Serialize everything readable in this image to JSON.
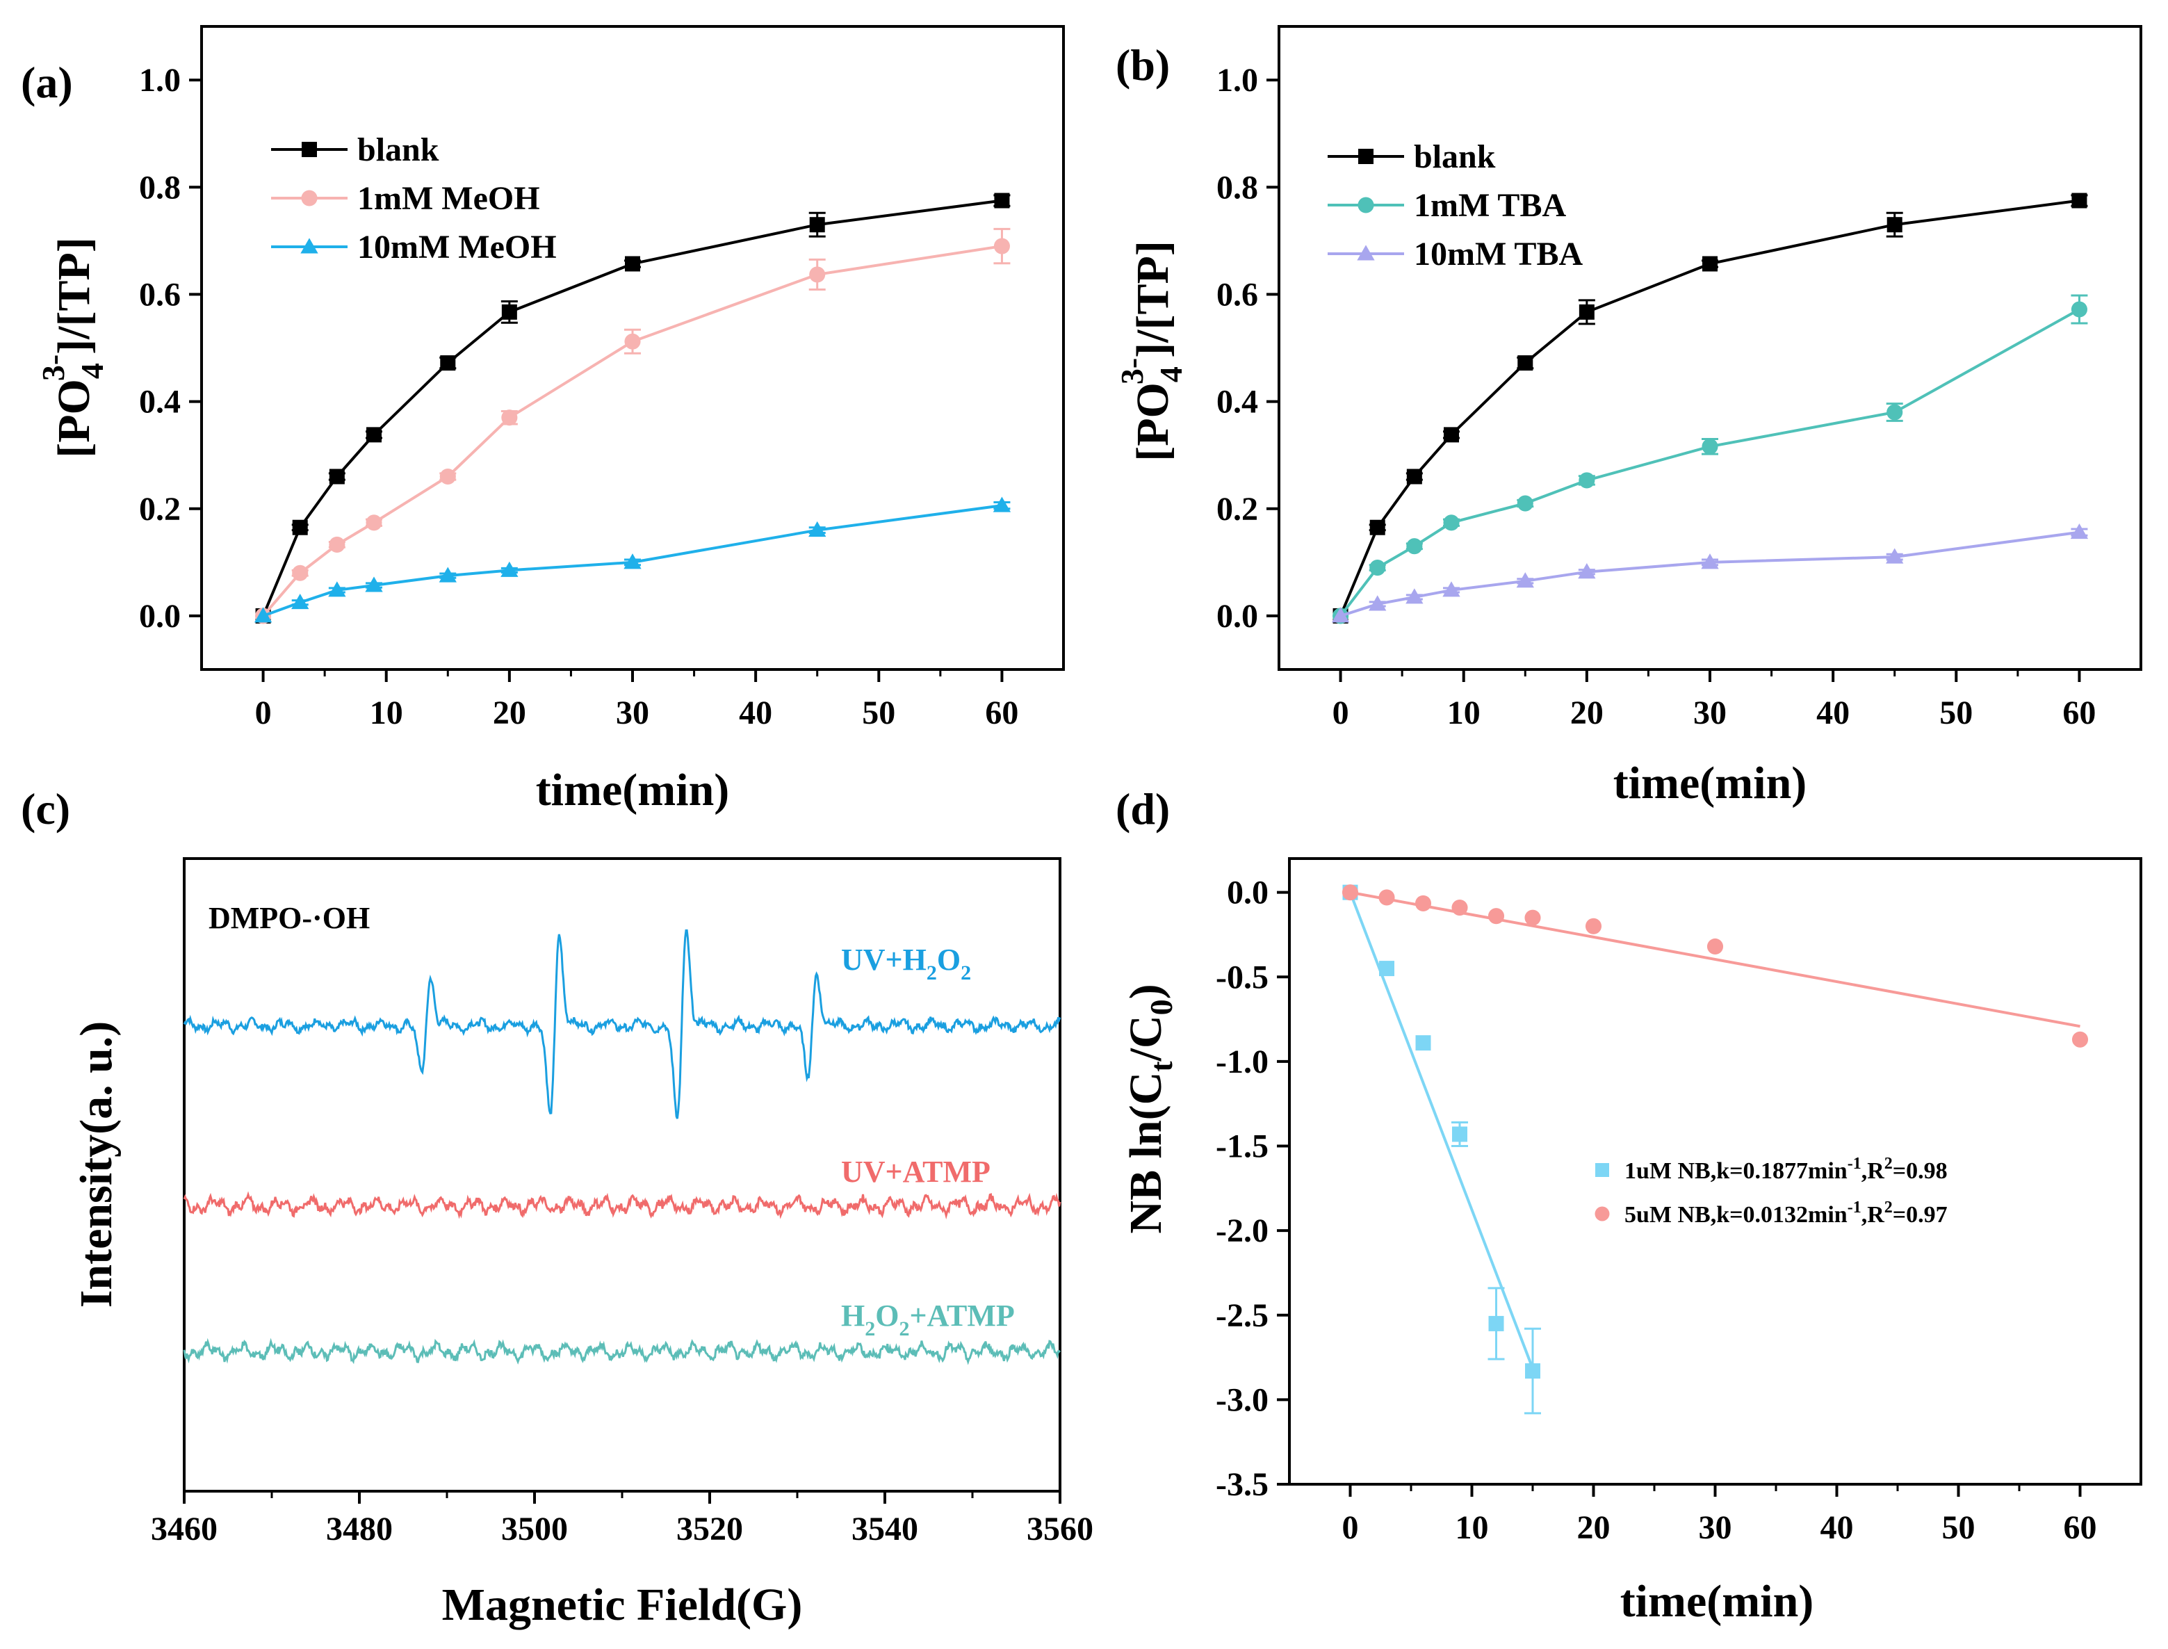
{
  "chart_data": [
    {
      "id": "a",
      "panel_label": "(a)",
      "type": "line",
      "xlabel": "time(min)",
      "ylabel_parts": {
        "pre": "[PO",
        "sub": "4",
        "sup": "3-",
        "post": "]/[TP]"
      },
      "xlim": [
        -5,
        65
      ],
      "ylim": [
        -0.1,
        1.1
      ],
      "xticks": [
        0,
        10,
        20,
        30,
        40,
        50,
        60
      ],
      "xtick_labels": [
        "0",
        "10",
        "20",
        "30",
        "40",
        "50",
        "60"
      ],
      "yticks": [
        0.0,
        0.2,
        0.4,
        0.6,
        0.8,
        1.0
      ],
      "ytick_labels": [
        "0.0",
        "0.2",
        "0.4",
        "0.6",
        "0.8",
        "1.0"
      ],
      "legend_position": "top-left",
      "series": [
        {
          "name": "blank",
          "color": "#000000",
          "marker": "square",
          "x": [
            0,
            3,
            6,
            9,
            15,
            20,
            30,
            45,
            60
          ],
          "y": [
            0.0,
            0.165,
            0.26,
            0.338,
            0.472,
            0.567,
            0.657,
            0.73,
            0.775
          ],
          "err": [
            0,
            0.005,
            0.006,
            0.006,
            0.01,
            0.02,
            0.006,
            0.022,
            0.01
          ]
        },
        {
          "name": "1mM MeOH",
          "color": "#f7b3b1",
          "marker": "circle",
          "x": [
            0,
            3,
            6,
            9,
            15,
            20,
            30,
            45,
            60
          ],
          "y": [
            0.0,
            0.08,
            0.133,
            0.174,
            0.26,
            0.37,
            0.512,
            0.637,
            0.69
          ],
          "err": [
            0,
            0.005,
            0.005,
            0.006,
            0.006,
            0.012,
            0.022,
            0.028,
            0.032
          ]
        },
        {
          "name": "10mM MeOH",
          "color": "#1fb0ea",
          "marker": "triangle",
          "x": [
            0,
            3,
            6,
            9,
            15,
            20,
            30,
            45,
            60
          ],
          "y": [
            0.0,
            0.025,
            0.048,
            0.057,
            0.075,
            0.085,
            0.1,
            0.16,
            0.206
          ],
          "err": [
            0,
            0.004,
            0.004,
            0.004,
            0.004,
            0.004,
            0.005,
            0.005,
            0.006
          ]
        }
      ]
    },
    {
      "id": "b",
      "panel_label": "(b)",
      "type": "line",
      "xlabel": "time(min)",
      "ylabel_parts": {
        "pre": "[PO",
        "sub": "4",
        "sup": "3-",
        "post": "]/[TP]"
      },
      "xlim": [
        -5,
        65
      ],
      "ylim": [
        -0.1,
        1.1
      ],
      "xticks": [
        0,
        10,
        20,
        30,
        40,
        50,
        60
      ],
      "xtick_labels": [
        "0",
        "10",
        "20",
        "30",
        "40",
        "50",
        "60"
      ],
      "yticks": [
        0.0,
        0.2,
        0.4,
        0.6,
        0.8,
        1.0
      ],
      "ytick_labels": [
        "0.0",
        "0.2",
        "0.4",
        "0.6",
        "0.8",
        "1.0"
      ],
      "legend_position": "top-left",
      "series": [
        {
          "name": "blank",
          "color": "#000000",
          "marker": "square",
          "x": [
            0,
            3,
            6,
            9,
            15,
            20,
            30,
            45,
            60
          ],
          "y": [
            0.0,
            0.165,
            0.26,
            0.338,
            0.472,
            0.567,
            0.657,
            0.73,
            0.775
          ],
          "err": [
            0,
            0.005,
            0.006,
            0.006,
            0.01,
            0.022,
            0.006,
            0.022,
            0.01
          ]
        },
        {
          "name": "1mM TBA",
          "color": "#4fc1b8",
          "marker": "circle",
          "x": [
            0,
            3,
            6,
            9,
            15,
            20,
            30,
            45,
            60
          ],
          "y": [
            0.0,
            0.09,
            0.13,
            0.174,
            0.21,
            0.253,
            0.316,
            0.38,
            0.572
          ],
          "err": [
            0,
            0.005,
            0.005,
            0.006,
            0.006,
            0.008,
            0.014,
            0.016,
            0.026
          ]
        },
        {
          "name": "10mM TBA",
          "color": "#a8a6ee",
          "marker": "triangle",
          "x": [
            0,
            3,
            6,
            9,
            15,
            20,
            30,
            45,
            60
          ],
          "y": [
            0.0,
            0.022,
            0.035,
            0.048,
            0.065,
            0.082,
            0.1,
            0.11,
            0.156
          ],
          "err": [
            0,
            0.004,
            0.004,
            0.004,
            0.004,
            0.004,
            0.005,
            0.005,
            0.006
          ]
        }
      ]
    },
    {
      "id": "c",
      "panel_label": "(c)",
      "type": "line",
      "xlabel": "Magnetic Field(G)",
      "ylabel": "Intensity(a. u.)",
      "xlim": [
        3460,
        3560
      ],
      "xticks": [
        3460,
        3480,
        3500,
        3520,
        3540,
        3560
      ],
      "xtick_labels": [
        "3460",
        "3480",
        "3500",
        "3520",
        "3540",
        "3560"
      ],
      "y_ticks_shown": false,
      "annotation": "DMPO-·OH",
      "hyperfine_lines": [
        3487.6,
        3502.3,
        3516.8,
        3531.7
      ],
      "series": [
        {
          "name_parts": {
            "a": "UV+H",
            "sub": "2",
            "b": "O",
            "sub2": "2",
            "c": ""
          },
          "color": "#1a9fe0",
          "baseline": 0.0,
          "peak_amplitudes": [
            0.72,
            1.35,
            1.42,
            0.78
          ],
          "noise": 0.07
        },
        {
          "name_parts": {
            "a": "UV+ATMP",
            "sub": "",
            "b": "",
            "sub2": "",
            "c": ""
          },
          "color": "#f06b6b",
          "baseline": -1.85,
          "peak_amplitudes": [
            0,
            0,
            0,
            0
          ],
          "noise": 0.09
        },
        {
          "name_parts": {
            "a": "H",
            "sub": "2",
            "b": "O",
            "sub2": "2",
            "c": "+ATMP"
          },
          "color": "#5cbdb7",
          "baseline": -3.35,
          "peak_amplitudes": [
            0,
            0,
            0,
            0
          ],
          "noise": 0.09
        }
      ]
    },
    {
      "id": "d",
      "panel_label": "(d)",
      "type": "scatter",
      "xlabel": "time(min)",
      "ylabel_parts": {
        "pre": "NB ln(C",
        "sub": "t",
        "mid": "/C",
        "sub2": "0",
        "post": ")"
      },
      "xlim": [
        -5,
        65
      ],
      "ylim": [
        -3.5,
        0.2
      ],
      "xticks": [
        0,
        10,
        20,
        30,
        40,
        50,
        60
      ],
      "xtick_labels": [
        "0",
        "10",
        "20",
        "30",
        "40",
        "50",
        "60"
      ],
      "yticks": [
        0.0,
        -0.5,
        -1.0,
        -1.5,
        -2.0,
        -2.5,
        -3.0,
        -3.5
      ],
      "ytick_labels": [
        "0.0",
        "-0.5",
        "-1.0",
        "-1.5",
        "-2.0",
        "-2.5",
        "-3.0",
        "-3.5"
      ],
      "legend_position": "bottom-right",
      "series": [
        {
          "name_parts": {
            "a": "1uM NB,k=0.1877min",
            "sup": "-1",
            "b": ",R",
            "sup2": "2",
            "c": "=0.98"
          },
          "color": "#7dd6f5",
          "marker": "square",
          "x": [
            0,
            3,
            6,
            9,
            12,
            15
          ],
          "y": [
            0.0,
            -0.45,
            -0.89,
            -1.43,
            -2.55,
            -2.83
          ],
          "err": [
            0,
            0,
            0,
            0.07,
            0.21,
            0.25
          ],
          "fit": {
            "slope": -0.1877,
            "intercept": 0.0,
            "x0": 0,
            "x1": 15
          }
        },
        {
          "name_parts": {
            "a": "5uM NB,k=0.0132min",
            "sup": "-1",
            "b": ",R",
            "sup2": "2",
            "c": "=0.97"
          },
          "color": "#f79a98",
          "marker": "circle",
          "x": [
            0,
            3,
            6,
            9,
            12,
            15,
            20,
            30,
            60
          ],
          "y": [
            0.0,
            -0.03,
            -0.065,
            -0.09,
            -0.14,
            -0.15,
            -0.2,
            -0.32,
            -0.87
          ],
          "err": [
            0,
            0,
            0,
            0,
            0,
            0,
            0,
            0,
            0
          ],
          "fit": {
            "slope": -0.0132,
            "intercept": 0.0,
            "x0": 0,
            "x1": 60
          }
        }
      ]
    }
  ]
}
